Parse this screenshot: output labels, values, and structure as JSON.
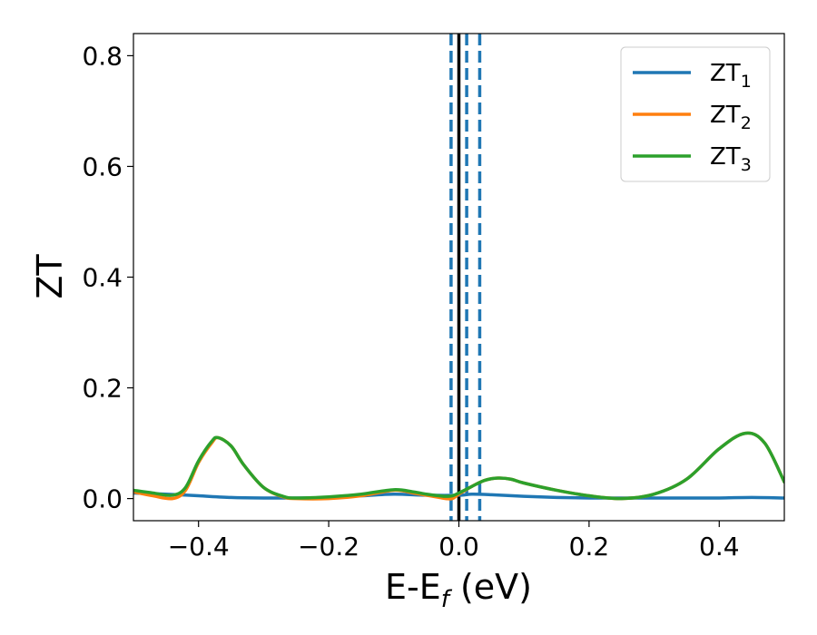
{
  "chart_data": {
    "type": "line",
    "xlabel": "E-E",
    "xlabel_sub": "f",
    "xlabel_unit": " (eV)",
    "ylabel": "ZT",
    "xlim": [
      -0.5,
      0.5
    ],
    "ylim": [
      -0.04,
      0.84
    ],
    "grid": false,
    "legend_position": "top-right",
    "xticks": [
      -0.4,
      -0.2,
      0.0,
      0.2,
      0.4
    ],
    "xtick_labels": [
      "−0.4",
      "−0.2",
      "0.0",
      "0.2",
      "0.4"
    ],
    "yticks": [
      0.0,
      0.2,
      0.4,
      0.6,
      0.8
    ],
    "ytick_labels": [
      "0.0",
      "0.2",
      "0.4",
      "0.6",
      "0.8"
    ],
    "vlines": [
      {
        "x": 0.0,
        "style": "solid",
        "color": "#000000"
      },
      {
        "x": -0.012,
        "style": "dashed",
        "color": "#1f77b4"
      },
      {
        "x": 0.012,
        "style": "dashed",
        "color": "#1f77b4"
      },
      {
        "x": 0.032,
        "style": "dashed",
        "color": "#1f77b4"
      }
    ],
    "series": [
      {
        "name": "ZT",
        "name_sub": "1",
        "color": "#1f77b4",
        "x": [
          -0.5,
          -0.45,
          -0.4,
          -0.35,
          -0.3,
          -0.25,
          -0.2,
          -0.15,
          -0.1,
          -0.05,
          0.0,
          0.02,
          0.05,
          0.1,
          0.15,
          0.2,
          0.25,
          0.3,
          0.35,
          0.4,
          0.45,
          0.5
        ],
        "y": [
          0.01,
          0.008,
          0.005,
          0.002,
          0.001,
          0.001,
          0.002,
          0.005,
          0.008,
          0.006,
          0.006,
          0.008,
          0.007,
          0.004,
          0.002,
          0.001,
          0.001,
          0.001,
          0.001,
          0.001,
          0.002,
          0.001
        ]
      },
      {
        "name": "ZT",
        "name_sub": "2",
        "color": "#ff7f0e",
        "x": [
          -0.5,
          -0.47,
          -0.44,
          -0.42,
          -0.4,
          -0.38,
          -0.37,
          -0.35,
          -0.33,
          -0.3,
          -0.27,
          -0.25,
          -0.2,
          -0.15,
          -0.1,
          -0.07,
          -0.05,
          -0.03,
          -0.02,
          -0.01,
          0.0,
          0.02,
          0.04,
          0.06,
          0.08,
          0.1,
          0.15,
          0.2,
          0.25,
          0.3,
          0.35,
          0.4,
          0.44,
          0.47,
          0.5
        ],
        "y": [
          0.012,
          0.005,
          0.0,
          0.015,
          0.065,
          0.1,
          0.11,
          0.095,
          0.06,
          0.02,
          0.003,
          0.0,
          0.0,
          0.005,
          0.015,
          0.01,
          0.006,
          0.002,
          0.0,
          0.0,
          0.008,
          0.022,
          0.033,
          0.037,
          0.035,
          0.028,
          0.015,
          0.005,
          0.0,
          0.008,
          0.035,
          0.09,
          0.118,
          0.1,
          0.03
        ]
      },
      {
        "name": "ZT",
        "name_sub": "3",
        "color": "#2ca02c",
        "x": [
          -0.5,
          -0.47,
          -0.44,
          -0.42,
          -0.4,
          -0.38,
          -0.37,
          -0.35,
          -0.33,
          -0.3,
          -0.27,
          -0.25,
          -0.2,
          -0.15,
          -0.1,
          -0.07,
          -0.05,
          -0.03,
          -0.02,
          -0.01,
          0.0,
          0.02,
          0.04,
          0.06,
          0.08,
          0.1,
          0.15,
          0.2,
          0.25,
          0.3,
          0.35,
          0.4,
          0.44,
          0.47,
          0.5
        ],
        "y": [
          0.015,
          0.01,
          0.006,
          0.02,
          0.068,
          0.103,
          0.11,
          0.095,
          0.06,
          0.02,
          0.004,
          0.001,
          0.003,
          0.008,
          0.016,
          0.012,
          0.008,
          0.005,
          0.004,
          0.005,
          0.01,
          0.022,
          0.033,
          0.037,
          0.035,
          0.028,
          0.015,
          0.005,
          0.0,
          0.008,
          0.035,
          0.09,
          0.118,
          0.1,
          0.03
        ]
      }
    ]
  }
}
